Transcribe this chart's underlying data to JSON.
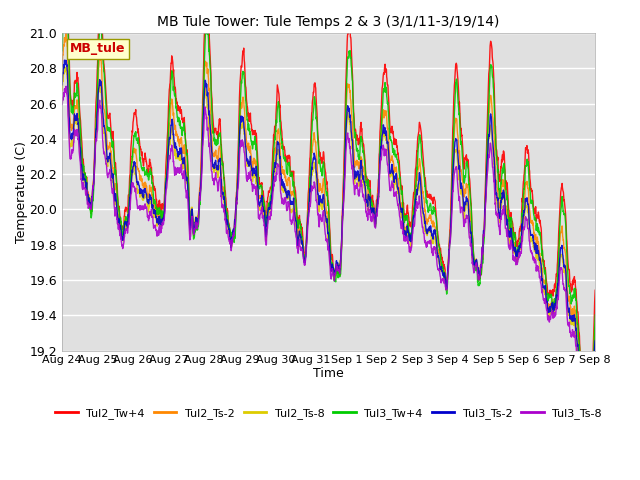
{
  "title": "MB Tule Tower: Tule Temps 2 & 3 (3/1/11-3/19/14)",
  "xlabel": "Time",
  "ylabel": "Temperature (C)",
  "ylim": [
    19.2,
    21.0
  ],
  "background_color": "#ffffff",
  "plot_bg_color": "#e0e0e0",
  "grid_color": "#ffffff",
  "series": [
    {
      "name": "Tul2_Tw+4",
      "color": "#ff0000"
    },
    {
      "name": "Tul2_Ts-2",
      "color": "#ff8800"
    },
    {
      "name": "Tul2_Ts-8",
      "color": "#ddcc00"
    },
    {
      "name": "Tul3_Tw+4",
      "color": "#00cc00"
    },
    {
      "name": "Tul3_Ts-2",
      "color": "#0000cc"
    },
    {
      "name": "Tul3_Ts-8",
      "color": "#aa00cc"
    }
  ],
  "xtick_labels": [
    "Aug 24",
    "Aug 25",
    "Aug 26",
    "Aug 27",
    "Aug 28",
    "Aug 29",
    "Aug 30",
    "Aug 31",
    "Sep 1",
    "Sep 2",
    "Sep 3",
    "Sep 4",
    "Sep 5",
    "Sep 6",
    "Sep 7",
    "Sep 8"
  ],
  "watermark": "MB_tule",
  "n_points": 2000,
  "duration_days": 15.0
}
